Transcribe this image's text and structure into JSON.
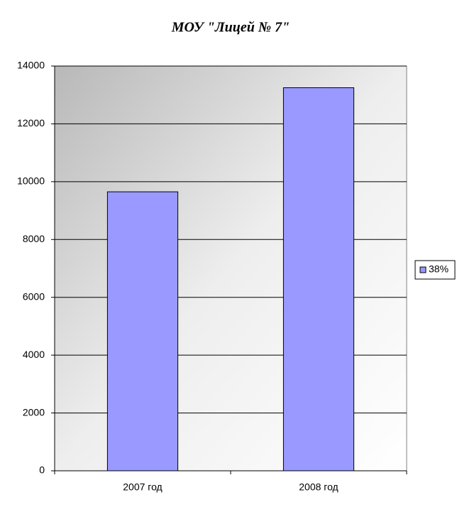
{
  "chart_data": {
    "type": "bar",
    "title": "МОУ \"Лицей № 7\"",
    "categories": [
      "2007 год",
      "2008 год"
    ],
    "series": [
      {
        "name": "38%",
        "color": "#9999ff",
        "values": [
          9650,
          13250
        ]
      }
    ],
    "ylim": [
      0,
      14000
    ],
    "yticks": [
      0,
      2000,
      4000,
      6000,
      8000,
      10000,
      12000,
      14000
    ],
    "grid": true,
    "legend": "right"
  }
}
